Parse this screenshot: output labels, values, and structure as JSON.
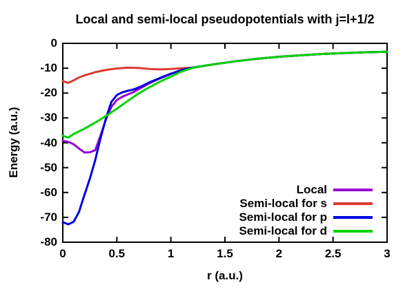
{
  "colors": {
    "background": "#ffffff",
    "axis": "#000000",
    "text": "#000000"
  },
  "chart_data": {
    "type": "line",
    "title": "Local and semi-local pseudopotentials with j=l+1/2",
    "xlabel": "r (a.u.)",
    "ylabel": "Energy (a.u.)",
    "xlim": [
      0,
      3
    ],
    "ylim": [
      -80,
      0
    ],
    "xticks": [
      0,
      0.5,
      1,
      1.5,
      2,
      2.5,
      3
    ],
    "xtick_labels": [
      "0",
      "0.5",
      "1",
      "1.5",
      "2",
      "2.5",
      "3"
    ],
    "yticks": [
      0,
      -10,
      -20,
      -30,
      -40,
      -50,
      -60,
      -70,
      -80
    ],
    "ytick_labels": [
      "0",
      "-10",
      "-20",
      "-30",
      "-40",
      "-50",
      "-60",
      "-70",
      "-80"
    ],
    "grid": false,
    "legend_position": "inside bottom-right",
    "series": [
      {
        "name": "Local",
        "color": "#9400d3",
        "x": [
          0,
          0.05,
          0.1,
          0.15,
          0.2,
          0.25,
          0.3,
          0.35,
          0.4,
          0.45,
          0.5,
          0.55,
          0.6,
          0.65,
          0.7,
          0.75,
          0.8,
          0.9,
          1.0,
          1.1,
          1.2,
          1.3,
          1.4,
          1.5,
          1.6,
          1.8,
          2.0,
          2.2,
          2.4,
          2.6,
          2.8,
          3.0
        ],
        "y": [
          -39.2,
          -39.6,
          -40.6,
          -42.3,
          -43.9,
          -43.8,
          -43.0,
          -37.0,
          -30.5,
          -25.5,
          -22.8,
          -21.5,
          -20.6,
          -19.7,
          -18.5,
          -17.3,
          -16.1,
          -14.1,
          -12.3,
          -10.8,
          -9.8,
          -9.1,
          -8.4,
          -7.8,
          -7.2,
          -6.2,
          -5.4,
          -4.8,
          -4.3,
          -3.9,
          -3.6,
          -3.4
        ]
      },
      {
        "name": "Semi-local for s",
        "color": "#dc3a30",
        "x": [
          0,
          0.05,
          0.1,
          0.15,
          0.2,
          0.3,
          0.4,
          0.5,
          0.6,
          0.7,
          0.8,
          0.9,
          1.0,
          1.1,
          1.2,
          1.3,
          1.4,
          1.5,
          1.6,
          1.8,
          2.0,
          2.2,
          2.4,
          2.6,
          2.8,
          3.0
        ],
        "y": [
          -15.2,
          -15.9,
          -14.9,
          -13.7,
          -12.9,
          -11.6,
          -10.7,
          -10.1,
          -9.8,
          -9.9,
          -10.3,
          -10.5,
          -10.3,
          -10.0,
          -9.8,
          -9.1,
          -8.4,
          -7.8,
          -7.2,
          -6.2,
          -5.4,
          -4.8,
          -4.3,
          -3.9,
          -3.6,
          -3.4
        ]
      },
      {
        "name": "Semi-local for p",
        "color": "#0000e0",
        "x": [
          0,
          0.05,
          0.1,
          0.15,
          0.2,
          0.25,
          0.3,
          0.35,
          0.4,
          0.45,
          0.5,
          0.55,
          0.6,
          0.65,
          0.7,
          0.75,
          0.8,
          0.9,
          1.0,
          1.1,
          1.2,
          1.3,
          1.4,
          1.5,
          1.6,
          1.8,
          2.0,
          2.2,
          2.4,
          2.6,
          2.8,
          3.0
        ],
        "y": [
          -71.9,
          -72.8,
          -71.8,
          -67.8,
          -61.0,
          -54.5,
          -47.0,
          -38.0,
          -30.0,
          -23.5,
          -20.8,
          -19.7,
          -19.1,
          -18.6,
          -17.8,
          -16.8,
          -15.7,
          -13.9,
          -12.2,
          -10.7,
          -9.8,
          -9.1,
          -8.4,
          -7.8,
          -7.2,
          -6.2,
          -5.4,
          -4.8,
          -4.3,
          -3.9,
          -3.6,
          -3.4
        ]
      },
      {
        "name": "Semi-local for d",
        "color": "#00d400",
        "x": [
          0,
          0.05,
          0.1,
          0.2,
          0.3,
          0.4,
          0.5,
          0.6,
          0.7,
          0.8,
          0.9,
          1.0,
          1.1,
          1.2,
          1.3,
          1.4,
          1.5,
          1.6,
          1.8,
          2.0,
          2.2,
          2.4,
          2.6,
          2.8,
          3.0
        ],
        "y": [
          -37.2,
          -37.9,
          -36.5,
          -34.3,
          -31.9,
          -29.2,
          -26.3,
          -23.2,
          -20.2,
          -17.7,
          -15.4,
          -13.4,
          -11.3,
          -9.9,
          -9.1,
          -8.4,
          -7.8,
          -7.2,
          -6.2,
          -5.4,
          -4.8,
          -4.3,
          -3.9,
          -3.6,
          -3.4
        ]
      }
    ]
  }
}
